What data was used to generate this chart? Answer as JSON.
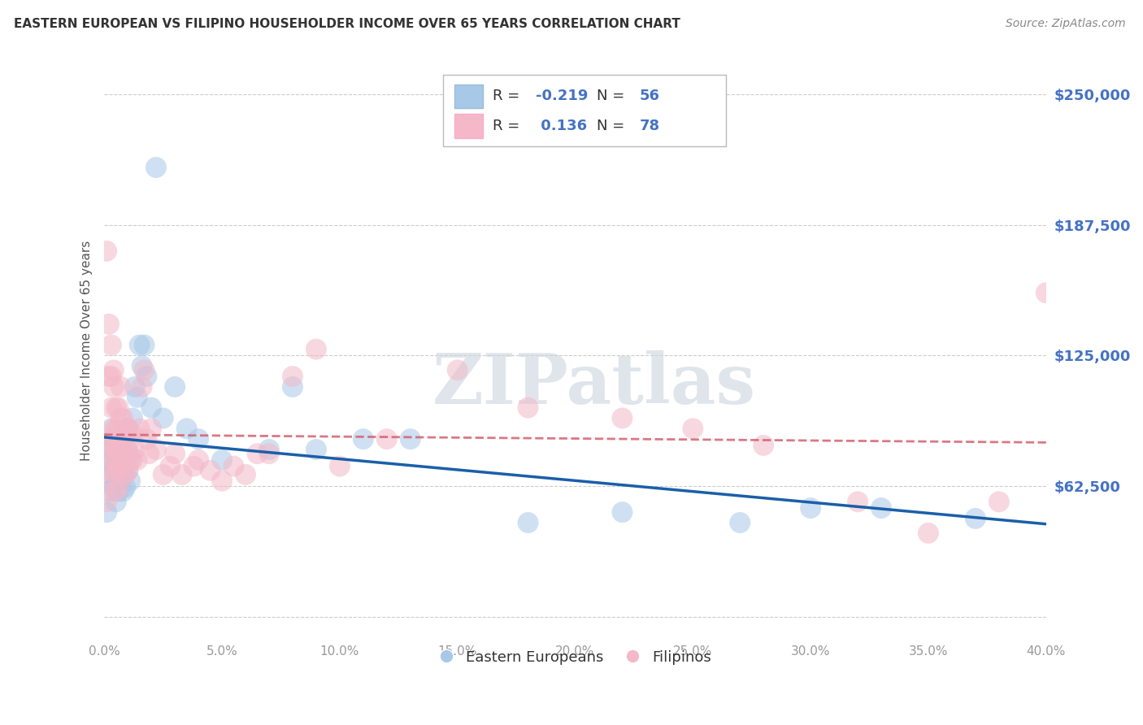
{
  "title": "EASTERN EUROPEAN VS FILIPINO HOUSEHOLDER INCOME OVER 65 YEARS CORRELATION CHART",
  "source": "Source: ZipAtlas.com",
  "ylabel": "Householder Income Over 65 years",
  "yticks": [
    0,
    62500,
    125000,
    187500,
    250000
  ],
  "ytick_labels": [
    "",
    "$62,500",
    "$125,000",
    "$187,500",
    "$250,000"
  ],
  "xlim": [
    0.0,
    0.4
  ],
  "ylim": [
    -10000,
    265000
  ],
  "watermark": "ZIPatlas",
  "blue_color": "#a8c8e8",
  "pink_color": "#f4b8c8",
  "blue_line_color": "#1a5fa8",
  "pink_line_color": "#d46070",
  "title_color": "#333333",
  "axis_color": "#4472C4",
  "legend_line1_r": "-0.219",
  "legend_line1_n": "56",
  "legend_line2_r": "0.136",
  "legend_line2_n": "78",
  "blue_scatter_x": [
    0.001,
    0.002,
    0.002,
    0.003,
    0.003,
    0.003,
    0.004,
    0.004,
    0.004,
    0.005,
    0.005,
    0.005,
    0.005,
    0.006,
    0.006,
    0.006,
    0.006,
    0.007,
    0.007,
    0.007,
    0.008,
    0.008,
    0.008,
    0.009,
    0.009,
    0.009,
    0.01,
    0.01,
    0.01,
    0.011,
    0.011,
    0.012,
    0.013,
    0.014,
    0.015,
    0.016,
    0.017,
    0.018,
    0.02,
    0.022,
    0.025,
    0.03,
    0.035,
    0.04,
    0.05,
    0.07,
    0.08,
    0.09,
    0.11,
    0.13,
    0.18,
    0.22,
    0.27,
    0.3,
    0.33,
    0.37
  ],
  "blue_scatter_y": [
    50000,
    75000,
    60000,
    80000,
    68000,
    90000,
    72000,
    62000,
    85000,
    70000,
    78000,
    65000,
    55000,
    75000,
    68000,
    80000,
    60000,
    72000,
    85000,
    65000,
    78000,
    68000,
    60000,
    75000,
    62000,
    88000,
    80000,
    70000,
    90000,
    75000,
    65000,
    95000,
    110000,
    105000,
    130000,
    120000,
    130000,
    115000,
    100000,
    215000,
    95000,
    110000,
    90000,
    85000,
    75000,
    80000,
    110000,
    80000,
    85000,
    85000,
    45000,
    50000,
    45000,
    52000,
    52000,
    47000
  ],
  "pink_scatter_x": [
    0.001,
    0.001,
    0.001,
    0.002,
    0.002,
    0.002,
    0.002,
    0.003,
    0.003,
    0.003,
    0.003,
    0.003,
    0.004,
    0.004,
    0.004,
    0.004,
    0.005,
    0.005,
    0.005,
    0.005,
    0.005,
    0.006,
    0.006,
    0.006,
    0.006,
    0.006,
    0.007,
    0.007,
    0.007,
    0.007,
    0.008,
    0.008,
    0.008,
    0.008,
    0.009,
    0.009,
    0.009,
    0.01,
    0.01,
    0.01,
    0.011,
    0.011,
    0.012,
    0.012,
    0.013,
    0.014,
    0.015,
    0.016,
    0.017,
    0.018,
    0.019,
    0.02,
    0.022,
    0.025,
    0.028,
    0.03,
    0.033,
    0.038,
    0.04,
    0.045,
    0.05,
    0.055,
    0.06,
    0.065,
    0.07,
    0.08,
    0.09,
    0.1,
    0.12,
    0.15,
    0.18,
    0.22,
    0.25,
    0.28,
    0.32,
    0.35,
    0.38,
    0.4
  ],
  "pink_scatter_y": [
    175000,
    80000,
    55000,
    115000,
    140000,
    80000,
    65000,
    115000,
    130000,
    100000,
    85000,
    70000,
    118000,
    110000,
    90000,
    75000,
    100000,
    90000,
    80000,
    70000,
    60000,
    100000,
    90000,
    80000,
    72000,
    62000,
    110000,
    95000,
    85000,
    72000,
    95000,
    85000,
    78000,
    68000,
    90000,
    80000,
    68000,
    90000,
    80000,
    70000,
    88000,
    75000,
    88000,
    75000,
    80000,
    75000,
    90000,
    110000,
    118000,
    85000,
    78000,
    90000,
    80000,
    68000,
    72000,
    78000,
    68000,
    72000,
    75000,
    70000,
    65000,
    72000,
    68000,
    78000,
    78000,
    115000,
    128000,
    72000,
    85000,
    118000,
    100000,
    95000,
    90000,
    82000,
    55000,
    40000,
    55000,
    155000
  ]
}
